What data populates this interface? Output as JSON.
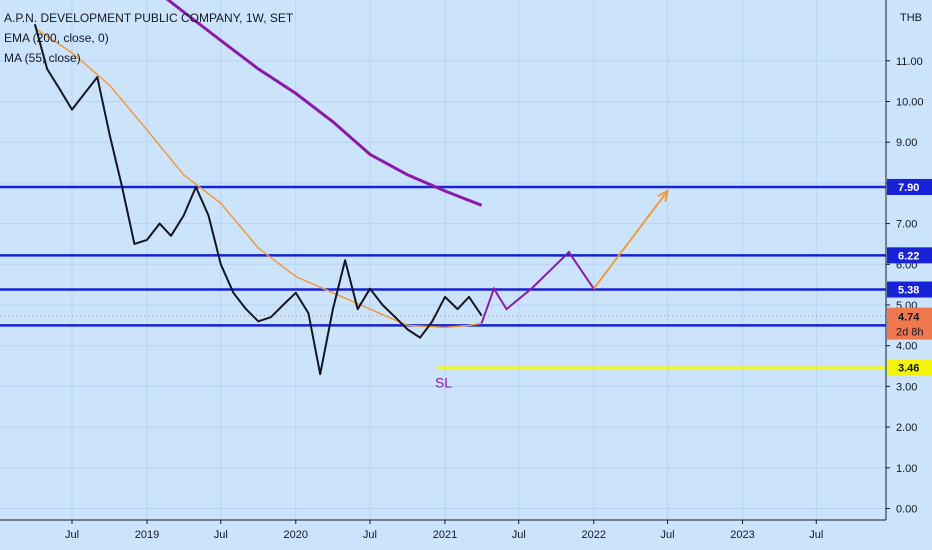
{
  "header": {
    "title": "A.P.N. DEVELOPMENT PUBLIC COMPANY, 1W, SET",
    "legend": [
      "EMA (200, close, 0)",
      "MA (55, close)"
    ],
    "currency": "THB"
  },
  "chart_data": {
    "type": "line",
    "title": "A.P.N. DEVELOPMENT PUBLIC COMPANY, 1W, SET",
    "ylim": [
      0,
      12
    ],
    "ytick_values": [
      0,
      1,
      2,
      3,
      4,
      5,
      6,
      7,
      8,
      9,
      10,
      11
    ],
    "ytick_labels": [
      "0.00",
      "1.00",
      "2.00",
      "3.00",
      "4.00",
      "5.00",
      "6.00",
      "7.00",
      "8.00",
      "9.00",
      "10.00",
      "11.00"
    ],
    "xlim": [
      "2018-04-01",
      "2023-12-31"
    ],
    "xticks": [
      {
        "date": "2018-07-01",
        "label": "Jul"
      },
      {
        "date": "2019-01-01",
        "label": "2019"
      },
      {
        "date": "2019-07-01",
        "label": "Jul"
      },
      {
        "date": "2020-01-01",
        "label": "2020"
      },
      {
        "date": "2020-07-01",
        "label": "Jul"
      },
      {
        "date": "2021-01-01",
        "label": "2021"
      },
      {
        "date": "2021-07-01",
        "label": "Jul"
      },
      {
        "date": "2022-01-01",
        "label": "2022"
      },
      {
        "date": "2022-07-01",
        "label": "Jul"
      },
      {
        "date": "2023-01-01",
        "label": "2023"
      },
      {
        "date": "2023-07-01",
        "label": "Jul"
      }
    ],
    "price_series": {
      "dates": [
        "2018-04-01",
        "2018-05-01",
        "2018-06-01",
        "2018-07-01",
        "2018-08-01",
        "2018-09-01",
        "2018-10-01",
        "2018-11-01",
        "2018-12-01",
        "2019-01-01",
        "2019-02-01",
        "2019-03-01",
        "2019-04-01",
        "2019-05-01",
        "2019-06-01",
        "2019-07-01",
        "2019-08-01",
        "2019-09-01",
        "2019-10-01",
        "2019-11-01",
        "2019-12-01",
        "2020-01-01",
        "2020-02-01",
        "2020-03-01",
        "2020-04-01",
        "2020-05-01",
        "2020-06-01",
        "2020-07-01",
        "2020-08-01",
        "2020-09-01",
        "2020-10-01",
        "2020-11-01",
        "2020-12-01",
        "2021-01-01",
        "2021-02-01",
        "2021-03-01",
        "2021-04-01"
      ],
      "values": [
        11.9,
        10.8,
        10.3,
        9.8,
        10.2,
        10.6,
        9.2,
        7.9,
        6.5,
        6.6,
        7.0,
        6.7,
        7.2,
        7.9,
        7.2,
        6.0,
        5.3,
        4.9,
        4.6,
        4.7,
        5.0,
        5.3,
        4.8,
        3.3,
        4.9,
        6.1,
        4.9,
        5.4,
        5.0,
        4.7,
        4.4,
        4.2,
        4.6,
        5.2,
        4.9,
        5.2,
        4.74
      ]
    },
    "ema200": {
      "dates": [
        "2019-01-01",
        "2019-04-01",
        "2019-07-01",
        "2019-10-01",
        "2020-01-01",
        "2020-04-01",
        "2020-07-01",
        "2020-10-01",
        "2021-01-01",
        "2021-04-01"
      ],
      "values": [
        12.9,
        12.2,
        11.5,
        10.8,
        10.2,
        9.5,
        8.7,
        8.2,
        7.8,
        7.45
      ]
    },
    "ma55": {
      "dates": [
        "2018-04-01",
        "2018-07-01",
        "2018-10-01",
        "2019-01-01",
        "2019-04-01",
        "2019-07-01",
        "2019-10-01",
        "2020-01-01",
        "2020-04-01",
        "2020-07-01",
        "2020-10-01",
        "2021-01-01",
        "2021-03-01",
        "2021-04-01"
      ],
      "values": [
        11.8,
        11.2,
        10.4,
        9.3,
        8.2,
        7.5,
        6.4,
        5.7,
        5.3,
        4.9,
        4.5,
        4.45,
        4.5,
        4.55
      ]
    },
    "levels": [
      {
        "value": 7.9,
        "label": "7.90",
        "color": "#1721d6"
      },
      {
        "value": 6.22,
        "label": "6.22",
        "color": "#1721d6"
      },
      {
        "value": 5.38,
        "label": "5.38",
        "color": "#1721d6"
      },
      {
        "value": 4.5,
        "label": "4.50",
        "color": "#1721d6"
      }
    ],
    "stop_loss": {
      "value": 3.46,
      "label": "3.46",
      "text": "SL",
      "color": "#f5f50a",
      "start_date": "2021-01-01"
    },
    "current_price": {
      "value": 4.74,
      "label": "4.74",
      "countdown": "2d 8h",
      "color": "#f0784f"
    },
    "projection_purple": {
      "dates": [
        "2021-04-01",
        "2021-05-01",
        "2021-06-01",
        "2021-08-01",
        "2021-11-01",
        "2022-01-01"
      ],
      "values": [
        4.55,
        5.4,
        4.9,
        5.4,
        6.3,
        5.4
      ]
    },
    "projection_orange": {
      "dates": [
        "2022-01-01",
        "2022-07-01"
      ],
      "values": [
        5.4,
        7.8
      ]
    },
    "colors": {
      "background": "#cce4fb",
      "candle_body": "#131722",
      "ema200": "#8b1aa8",
      "ma55": "#f09a3e",
      "level_line": "#1721d6",
      "projection_purple": "#8b1aa8",
      "projection_orange": "#f09a3e",
      "stop_loss": "#f5f50a"
    }
  }
}
